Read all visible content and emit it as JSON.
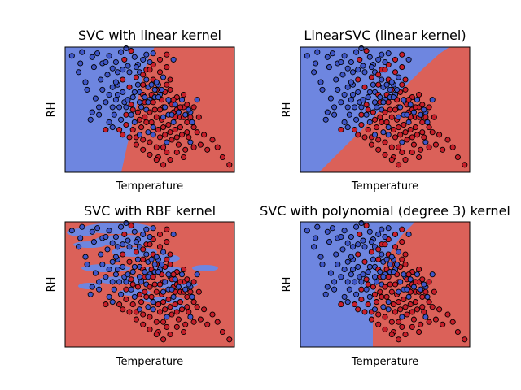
{
  "colors": {
    "class_a": "#6e86e0",
    "class_b": "#db6159",
    "point_a": "#3f56c8",
    "point_b": "#c81e2a",
    "edge": "#000000"
  },
  "chart_data": [
    {
      "type": "scatter",
      "title": "SVC with linear kernel",
      "xlabel": "Temperature",
      "ylabel": "RH",
      "xlim": [
        0,
        1
      ],
      "ylim": [
        0,
        1
      ],
      "xticks": [],
      "yticks": [],
      "grid": false,
      "decision_boundary": [
        [
          0.53,
          1.0
        ],
        [
          0.46,
          0.6
        ],
        [
          0.33,
          0.0
        ]
      ]
    },
    {
      "type": "scatter",
      "title": "LinearSVC (linear kernel)",
      "xlabel": "Temperature",
      "ylabel": "RH",
      "xlim": [
        0,
        1
      ],
      "ylim": [
        0,
        1
      ],
      "xticks": [],
      "yticks": [],
      "grid": false,
      "decision_boundary": [
        [
          0.88,
          1.0
        ],
        [
          0.42,
          0.6
        ],
        [
          0.11,
          0.0
        ]
      ]
    },
    {
      "type": "scatter",
      "title": "SVC with RBF kernel",
      "xlabel": "Temperature",
      "ylabel": "RH",
      "xlim": [
        0,
        1
      ],
      "ylim": [
        0,
        1
      ],
      "xticks": [],
      "yticks": [],
      "grid": false,
      "decision_boundary": []
    },
    {
      "type": "scatter",
      "title": "SVC with polynomial (degree 3) kernel",
      "xlabel": "Temperature",
      "ylabel": "RH",
      "xlim": [
        0,
        1
      ],
      "ylim": [
        0,
        1
      ],
      "xticks": [],
      "yticks": [],
      "grid": false,
      "decision_boundary": [
        [
          0.68,
          1.0
        ],
        [
          0.46,
          0.6
        ],
        [
          0.43,
          0.0
        ]
      ]
    }
  ],
  "points": [
    [
      0.04,
      0.93,
      0
    ],
    [
      0.09,
      0.87,
      0
    ],
    [
      0.1,
      0.96,
      0
    ],
    [
      0.16,
      0.92,
      0
    ],
    [
      0.17,
      0.84,
      0
    ],
    [
      0.19,
      0.95,
      0
    ],
    [
      0.22,
      0.87,
      0
    ],
    [
      0.26,
      0.93,
      0
    ],
    [
      0.28,
      0.83,
      0
    ],
    [
      0.3,
      0.88,
      0
    ],
    [
      0.33,
      0.96,
      0
    ],
    [
      0.35,
      0.9,
      1
    ],
    [
      0.37,
      0.85,
      0
    ],
    [
      0.39,
      0.97,
      1
    ],
    [
      0.41,
      0.92,
      0
    ],
    [
      0.43,
      0.86,
      0
    ],
    [
      0.36,
      0.99,
      0
    ],
    [
      0.31,
      0.8,
      0
    ],
    [
      0.25,
      0.78,
      0
    ],
    [
      0.21,
      0.74,
      0
    ],
    [
      0.13,
      0.66,
      0
    ],
    [
      0.18,
      0.59,
      0
    ],
    [
      0.16,
      0.48,
      0
    ],
    [
      0.24,
      0.56,
      0
    ],
    [
      0.28,
      0.68,
      0
    ],
    [
      0.31,
      0.62,
      0
    ],
    [
      0.34,
      0.74,
      1
    ],
    [
      0.35,
      0.56,
      0
    ],
    [
      0.38,
      0.68,
      1
    ],
    [
      0.4,
      0.6,
      0
    ],
    [
      0.42,
      0.76,
      1
    ],
    [
      0.44,
      0.64,
      0
    ],
    [
      0.46,
      0.7,
      1
    ],
    [
      0.48,
      0.82,
      1
    ],
    [
      0.5,
      0.58,
      0
    ],
    [
      0.52,
      0.74,
      1
    ],
    [
      0.54,
      0.66,
      1
    ],
    [
      0.56,
      0.62,
      0
    ],
    [
      0.58,
      0.52,
      1
    ],
    [
      0.6,
      0.7,
      1
    ],
    [
      0.62,
      0.56,
      0
    ],
    [
      0.64,
      0.48,
      1
    ],
    [
      0.66,
      0.6,
      1
    ],
    [
      0.68,
      0.44,
      1
    ],
    [
      0.7,
      0.52,
      1
    ],
    [
      0.72,
      0.4,
      1
    ],
    [
      0.74,
      0.48,
      0
    ],
    [
      0.76,
      0.36,
      1
    ],
    [
      0.79,
      0.44,
      1
    ],
    [
      0.82,
      0.3,
      1
    ],
    [
      0.32,
      0.52,
      0
    ],
    [
      0.36,
      0.46,
      1
    ],
    [
      0.39,
      0.54,
      1
    ],
    [
      0.41,
      0.4,
      0
    ],
    [
      0.43,
      0.48,
      1
    ],
    [
      0.45,
      0.36,
      1
    ],
    [
      0.47,
      0.44,
      1
    ],
    [
      0.49,
      0.32,
      0
    ],
    [
      0.51,
      0.4,
      1
    ],
    [
      0.53,
      0.5,
      1
    ],
    [
      0.55,
      0.34,
      1
    ],
    [
      0.57,
      0.42,
      1
    ],
    [
      0.59,
      0.3,
      1
    ],
    [
      0.61,
      0.38,
      1
    ],
    [
      0.63,
      0.26,
      1
    ],
    [
      0.65,
      0.34,
      1
    ],
    [
      0.67,
      0.22,
      1
    ],
    [
      0.69,
      0.3,
      1
    ],
    [
      0.71,
      0.18,
      1
    ],
    [
      0.73,
      0.28,
      1
    ],
    [
      0.47,
      0.56,
      1
    ],
    [
      0.49,
      0.68,
      0
    ],
    [
      0.51,
      0.62,
      1
    ],
    [
      0.53,
      0.6,
      0
    ],
    [
      0.55,
      0.7,
      0
    ],
    [
      0.57,
      0.58,
      1
    ],
    [
      0.59,
      0.64,
      1
    ],
    [
      0.61,
      0.46,
      0
    ],
    [
      0.63,
      0.54,
      1
    ],
    [
      0.65,
      0.44,
      1
    ],
    [
      0.44,
      0.8,
      0
    ],
    [
      0.46,
      0.78,
      1
    ],
    [
      0.48,
      0.74,
      0
    ],
    [
      0.5,
      0.82,
      1
    ],
    [
      0.52,
      0.86,
      1
    ],
    [
      0.54,
      0.72,
      0
    ],
    [
      0.56,
      0.8,
      1
    ],
    [
      0.58,
      0.76,
      0
    ],
    [
      0.6,
      0.84,
      1
    ],
    [
      0.62,
      0.74,
      1
    ],
    [
      0.4,
      0.5,
      1
    ],
    [
      0.42,
      0.28,
      1
    ],
    [
      0.44,
      0.56,
      0
    ],
    [
      0.46,
      0.26,
      1
    ],
    [
      0.48,
      0.5,
      0
    ],
    [
      0.5,
      0.24,
      1
    ],
    [
      0.52,
      0.3,
      0
    ],
    [
      0.54,
      0.2,
      1
    ],
    [
      0.56,
      0.28,
      1
    ],
    [
      0.58,
      0.2,
      1
    ],
    [
      0.6,
      0.16,
      1
    ],
    [
      0.62,
      0.32,
      1
    ],
    [
      0.64,
      0.4,
      0
    ],
    [
      0.66,
      0.5,
      1
    ],
    [
      0.68,
      0.36,
      1
    ],
    [
      0.7,
      0.44,
      1
    ],
    [
      0.72,
      0.32,
      1
    ],
    [
      0.74,
      0.24,
      0
    ],
    [
      0.76,
      0.2,
      1
    ],
    [
      0.78,
      0.32,
      1
    ],
    [
      0.8,
      0.22,
      1
    ],
    [
      0.84,
      0.18,
      1
    ],
    [
      0.87,
      0.26,
      1
    ],
    [
      0.9,
      0.2,
      1
    ],
    [
      0.93,
      0.12,
      1
    ],
    [
      0.97,
      0.06,
      1
    ],
    [
      0.66,
      0.16,
      1
    ],
    [
      0.7,
      0.12,
      1
    ],
    [
      0.62,
      0.1,
      1
    ],
    [
      0.55,
      0.12,
      1
    ],
    [
      0.6,
      0.24,
      0
    ],
    [
      0.62,
      0.66,
      1
    ],
    [
      0.64,
      0.58,
      1
    ],
    [
      0.66,
      0.28,
      1
    ],
    [
      0.68,
      0.52,
      1
    ],
    [
      0.7,
      0.62,
      1
    ],
    [
      0.72,
      0.54,
      1
    ],
    [
      0.74,
      0.44,
      1
    ],
    [
      0.76,
      0.52,
      1
    ],
    [
      0.78,
      0.58,
      0
    ],
    [
      0.48,
      0.4,
      1
    ],
    [
      0.5,
      0.48,
      1
    ],
    [
      0.52,
      0.56,
      1
    ],
    [
      0.54,
      0.44,
      1
    ],
    [
      0.56,
      0.5,
      1
    ],
    [
      0.58,
      0.36,
      1
    ],
    [
      0.46,
      0.62,
      1
    ],
    [
      0.44,
      0.42,
      1
    ],
    [
      0.4,
      0.34,
      1
    ],
    [
      0.36,
      0.38,
      1
    ],
    [
      0.34,
      0.3,
      1
    ],
    [
      0.38,
      0.28,
      1
    ],
    [
      0.42,
      0.22,
      1
    ],
    [
      0.46,
      0.18,
      1
    ],
    [
      0.5,
      0.14,
      1
    ],
    [
      0.54,
      0.1,
      1
    ],
    [
      0.58,
      0.06,
      1
    ],
    [
      0.26,
      0.4,
      0
    ],
    [
      0.29,
      0.46,
      0
    ],
    [
      0.33,
      0.42,
      0
    ],
    [
      0.22,
      0.66,
      0
    ],
    [
      0.2,
      0.52,
      0
    ],
    [
      0.26,
      0.62,
      0
    ],
    [
      0.28,
      0.52,
      0
    ],
    [
      0.31,
      0.7,
      0
    ],
    [
      0.34,
      0.64,
      0
    ],
    [
      0.37,
      0.58,
      0
    ],
    [
      0.39,
      0.46,
      0
    ],
    [
      0.41,
      0.64,
      0
    ],
    [
      0.43,
      0.7,
      0
    ],
    [
      0.45,
      0.52,
      0
    ],
    [
      0.47,
      0.6,
      0
    ],
    [
      0.49,
      0.56,
      0
    ],
    [
      0.51,
      0.7,
      0
    ],
    [
      0.53,
      0.66,
      0
    ],
    [
      0.55,
      0.6,
      0
    ],
    [
      0.57,
      0.66,
      0
    ],
    [
      0.59,
      0.52,
      0
    ],
    [
      0.61,
      0.58,
      0
    ],
    [
      0.63,
      0.46,
      0
    ],
    [
      0.65,
      0.54,
      0
    ],
    [
      0.67,
      0.48,
      0
    ],
    [
      0.69,
      0.58,
      0
    ],
    [
      0.71,
      0.46,
      0
    ],
    [
      0.73,
      0.5,
      0
    ],
    [
      0.75,
      0.4,
      0
    ],
    [
      0.46,
      0.9,
      0
    ],
    [
      0.48,
      0.94,
      0
    ],
    [
      0.5,
      0.88,
      0
    ],
    [
      0.52,
      0.95,
      0
    ],
    [
      0.56,
      0.9,
      1
    ],
    [
      0.6,
      0.94,
      1
    ],
    [
      0.64,
      0.9,
      0
    ],
    [
      0.38,
      0.8,
      0
    ],
    [
      0.42,
      0.84,
      0
    ],
    [
      0.08,
      0.8,
      0
    ],
    [
      0.12,
      0.72,
      0
    ],
    [
      0.24,
      0.88,
      0
    ],
    [
      0.3,
      0.72,
      0
    ],
    [
      0.34,
      0.82,
      0
    ],
    [
      0.15,
      0.42,
      0
    ],
    [
      0.2,
      0.46,
      0
    ],
    [
      0.24,
      0.34,
      1
    ],
    [
      0.28,
      0.36,
      0
    ],
    [
      0.32,
      0.34,
      1
    ],
    [
      0.44,
      0.3,
      0
    ],
    [
      0.52,
      0.36,
      0
    ],
    [
      0.58,
      0.44,
      0
    ],
    [
      0.36,
      0.52,
      0
    ],
    [
      0.3,
      0.58,
      0
    ]
  ]
}
